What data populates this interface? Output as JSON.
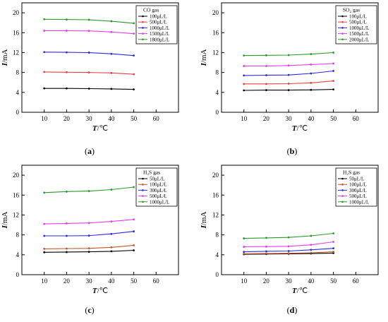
{
  "colors": {
    "black": "#000000",
    "red": "#e8413c",
    "blue": "#2a2ae0",
    "magenta": "#e040e8",
    "green": "#2a9a2a",
    "brown": "#c0562a"
  },
  "chart_data": [
    {
      "type": "line",
      "caption": {
        "open": "(",
        "letter": "a",
        "close": ")"
      },
      "xlabel": {
        "var": "T",
        "unit": "/℃"
      },
      "ylabel": {
        "var": "I",
        "unit": "/mA"
      },
      "xlim": [
        0,
        70
      ],
      "ylim": [
        0,
        22
      ],
      "xticks": [
        10,
        20,
        30,
        40,
        50,
        60
      ],
      "yticks": [
        0,
        4,
        8,
        12,
        16,
        20
      ],
      "legend_title": "CO gas",
      "legend_position": "top-right",
      "x": [
        10,
        20,
        30,
        40,
        50
      ],
      "series": [
        {
          "name": "100μL/L",
          "color": "#000000",
          "values": [
            4.8,
            4.8,
            4.75,
            4.7,
            4.6
          ]
        },
        {
          "name": "500μL/L",
          "color": "#e8413c",
          "values": [
            8.1,
            8.05,
            8.0,
            7.9,
            7.65
          ]
        },
        {
          "name": "1000μL/L",
          "color": "#2a2ae0",
          "values": [
            12.1,
            12.05,
            12.0,
            11.75,
            11.4
          ]
        },
        {
          "name": "1500μL/L",
          "color": "#e040e8",
          "values": [
            16.4,
            16.4,
            16.35,
            16.15,
            15.8
          ]
        },
        {
          "name": "1800μL/L",
          "color": "#2a9a2a",
          "values": [
            18.7,
            18.65,
            18.6,
            18.3,
            17.9
          ]
        }
      ]
    },
    {
      "type": "line",
      "caption": {
        "open": "(",
        "letter": "b",
        "close": ")"
      },
      "xlabel": {
        "var": "T",
        "unit": "/℃"
      },
      "ylabel": {
        "var": "I",
        "unit": "/mA"
      },
      "xlim": [
        0,
        70
      ],
      "ylim": [
        0,
        22
      ],
      "xticks": [
        10,
        20,
        30,
        40,
        50,
        60
      ],
      "yticks": [
        0,
        4,
        8,
        12,
        16,
        20
      ],
      "legend_title": "SO₂ gas",
      "legend_position": "top-right",
      "x": [
        10,
        20,
        30,
        40,
        50
      ],
      "series": [
        {
          "name": "100μL/L",
          "color": "#000000",
          "values": [
            4.4,
            4.45,
            4.45,
            4.5,
            4.6
          ]
        },
        {
          "name": "500μL/L",
          "color": "#e8413c",
          "values": [
            5.7,
            5.7,
            5.75,
            5.9,
            6.3
          ]
        },
        {
          "name": "1000μL/L",
          "color": "#2a2ae0",
          "values": [
            7.4,
            7.45,
            7.5,
            7.8,
            8.3
          ]
        },
        {
          "name": "1500μL/L",
          "color": "#e040e8",
          "values": [
            9.3,
            9.3,
            9.4,
            9.6,
            9.8
          ]
        },
        {
          "name": "2000μL/L",
          "color": "#2a9a2a",
          "values": [
            11.4,
            11.45,
            11.5,
            11.7,
            12.0
          ]
        }
      ]
    },
    {
      "type": "line",
      "caption": {
        "open": "(",
        "letter": "c",
        "close": ")"
      },
      "xlabel": {
        "var": "T",
        "unit": "/℃"
      },
      "ylabel": {
        "var": "I",
        "unit": "/mA"
      },
      "xlim": [
        0,
        70
      ],
      "ylim": [
        0,
        22
      ],
      "xticks": [
        10,
        20,
        30,
        40,
        50,
        60
      ],
      "yticks": [
        0,
        4,
        8,
        12,
        16,
        20
      ],
      "legend_title": "H₂S gas",
      "legend_position": "top-right",
      "x": [
        10,
        20,
        30,
        40,
        50
      ],
      "series": [
        {
          "name": "50μL/L",
          "color": "#000000",
          "values": [
            4.5,
            4.55,
            4.6,
            4.7,
            4.9
          ]
        },
        {
          "name": "100μL/L",
          "color": "#c0562a",
          "values": [
            5.2,
            5.25,
            5.3,
            5.5,
            5.9
          ]
        },
        {
          "name": "300μL/L",
          "color": "#2a2ae0",
          "values": [
            7.8,
            7.8,
            7.85,
            8.2,
            8.7
          ]
        },
        {
          "name": "500μL/L",
          "color": "#e040e8",
          "values": [
            10.2,
            10.3,
            10.4,
            10.7,
            11.1
          ]
        },
        {
          "name": "1000μL/L",
          "color": "#2a9a2a",
          "values": [
            16.5,
            16.7,
            16.8,
            17.1,
            17.6
          ]
        }
      ]
    },
    {
      "type": "line",
      "caption": {
        "open": "(",
        "letter": "d",
        "close": ")"
      },
      "xlabel": {
        "var": "T",
        "unit": "/℃"
      },
      "ylabel": {
        "var": "I",
        "unit": "/mA"
      },
      "xlim": [
        0,
        70
      ],
      "ylim": [
        0,
        22
      ],
      "xticks": [
        10,
        20,
        30,
        40,
        50,
        60
      ],
      "yticks": [
        0,
        4,
        8,
        12,
        16,
        20
      ],
      "legend_title": "H₂S gas",
      "legend_position": "top-right",
      "x": [
        10,
        20,
        30,
        40,
        50
      ],
      "series": [
        {
          "name": "50μL/L",
          "color": "#000000",
          "values": [
            4.1,
            4.15,
            4.2,
            4.25,
            4.35
          ]
        },
        {
          "name": "100μL/L",
          "color": "#c0562a",
          "values": [
            4.2,
            4.25,
            4.3,
            4.4,
            4.6
          ]
        },
        {
          "name": "300μL/L",
          "color": "#2a2ae0",
          "values": [
            4.6,
            4.7,
            4.75,
            5.0,
            5.3
          ]
        },
        {
          "name": "500μL/L",
          "color": "#e040e8",
          "values": [
            5.6,
            5.65,
            5.7,
            6.0,
            6.6
          ]
        },
        {
          "name": "1000μL/L",
          "color": "#2a9a2a",
          "values": [
            7.3,
            7.4,
            7.5,
            7.8,
            8.3
          ]
        }
      ]
    }
  ]
}
